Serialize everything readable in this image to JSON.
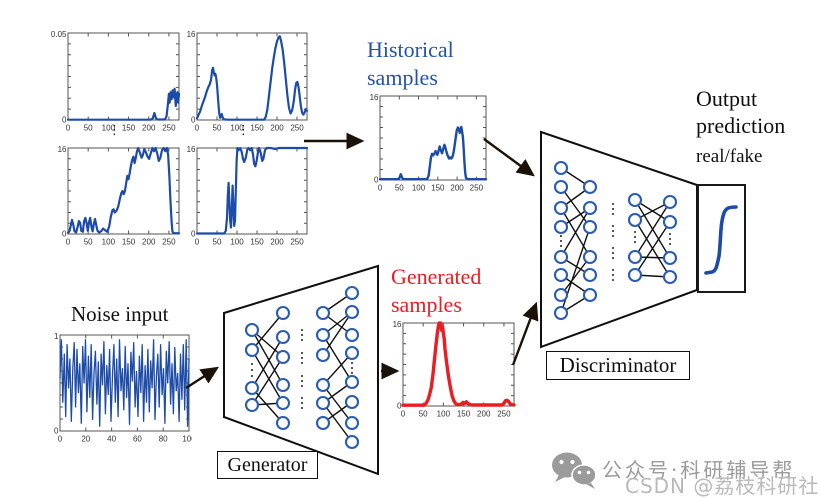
{
  "labels": {
    "historical_line1": "Historical",
    "historical_line2": "samples",
    "generated_line1": "Generated",
    "generated_line2": "samples",
    "noise_input": "Noise input",
    "generator": "Generator",
    "discriminator": "Discriminator",
    "output_line1": "Output",
    "output_line2": "prediction",
    "real_fake": "real/fake",
    "grid_ellipsis": "⋮"
  },
  "colors": {
    "series_blue": "#1d4ca8",
    "series_red": "#ec1c24",
    "node_stroke": "#2a5cb4",
    "axis": "#555555",
    "arrow": "#1a1208",
    "watermark_gray": "#9b9b9b",
    "watermark_light": "#b9b9b9"
  },
  "watermarks": {
    "wechat_text": "公众号·科研辅导帮",
    "csdn_text": "CSDN @荔枝科研社",
    "wechat_icon": "wechat-logo"
  },
  "plots": {
    "grid1": {
      "ymax_label": "0.05",
      "ymin_label": "0",
      "ymax": 0.05,
      "xmax": 275,
      "xtick_values": [
        0,
        50,
        100,
        150,
        200,
        250
      ],
      "xtick_labels": [
        "0",
        "50",
        "100",
        "150",
        "200",
        "250"
      ],
      "color": "#1d4ca8",
      "line_width": 2.2,
      "points": [
        [
          0,
          0.0002
        ],
        [
          205,
          0.0002
        ],
        [
          210,
          0.001
        ],
        [
          214,
          0.004
        ],
        [
          218,
          0.001
        ],
        [
          222,
          0.0003
        ],
        [
          240,
          0.0003
        ],
        [
          244,
          0.002
        ],
        [
          247,
          0.008
        ],
        [
          250,
          0.015
        ],
        [
          252,
          0.01
        ],
        [
          254,
          0.016
        ],
        [
          257,
          0.012
        ],
        [
          259,
          0.017
        ],
        [
          262,
          0.013
        ],
        [
          264,
          0.018
        ],
        [
          267,
          0.008
        ],
        [
          269,
          0.014
        ],
        [
          271,
          0.016
        ],
        [
          273,
          0.01
        ],
        [
          275,
          0.015
        ]
      ]
    },
    "grid2": {
      "ymax_label": "16",
      "ymin_label": "0",
      "ymax": 16,
      "xmax": 275,
      "xtick_values": [
        0,
        50,
        100,
        150,
        200,
        250
      ],
      "xtick_labels": [
        "0",
        "50",
        "100",
        "150",
        "200",
        "250"
      ],
      "color": "#1d4ca8",
      "line_width": 2.2,
      "points": [
        [
          0,
          0.3
        ],
        [
          4,
          1
        ],
        [
          8,
          1.6
        ],
        [
          12,
          2.6
        ],
        [
          16,
          3.4
        ],
        [
          20,
          4.2
        ],
        [
          24,
          5.2
        ],
        [
          28,
          6
        ],
        [
          32,
          6.6
        ],
        [
          35,
          7.4
        ],
        [
          38,
          9.2
        ],
        [
          40,
          9.6
        ],
        [
          42,
          8.8
        ],
        [
          44,
          8.2
        ],
        [
          46,
          8.5
        ],
        [
          48,
          7.8
        ],
        [
          50,
          6.5
        ],
        [
          52,
          4.5
        ],
        [
          54,
          2.5
        ],
        [
          56,
          1
        ],
        [
          58,
          0.4
        ],
        [
          60,
          0.9
        ],
        [
          62,
          1.1
        ],
        [
          64,
          0.5
        ],
        [
          66,
          0.2
        ],
        [
          70,
          0.1
        ],
        [
          80,
          0.05
        ],
        [
          168,
          0.05
        ],
        [
          172,
          0.6
        ],
        [
          176,
          2
        ],
        [
          180,
          4.5
        ],
        [
          184,
          7
        ],
        [
          188,
          9.5
        ],
        [
          192,
          11.5
        ],
        [
          196,
          13.2
        ],
        [
          200,
          14.5
        ],
        [
          204,
          15.2
        ],
        [
          207,
          15.4
        ],
        [
          210,
          14.6
        ],
        [
          214,
          13
        ],
        [
          218,
          10.5
        ],
        [
          222,
          7.5
        ],
        [
          226,
          4.5
        ],
        [
          230,
          2.2
        ],
        [
          234,
          1.2
        ],
        [
          238,
          1.8
        ],
        [
          242,
          3.5
        ],
        [
          245,
          5.5
        ],
        [
          248,
          6.8
        ],
        [
          251,
          7
        ],
        [
          254,
          6
        ],
        [
          257,
          4.2
        ],
        [
          260,
          2.4
        ],
        [
          263,
          1.3
        ],
        [
          266,
          1
        ],
        [
          269,
          1.4
        ],
        [
          272,
          2
        ],
        [
          275,
          1.7
        ]
      ]
    },
    "grid3": {
      "ymax_label": "16",
      "ymin_label": "0",
      "ymax": 16,
      "xmax": 275,
      "xtick_values": [
        0,
        50,
        100,
        150,
        200,
        250
      ],
      "xtick_labels": [
        "0",
        "50",
        "100",
        "150",
        "200",
        "250"
      ],
      "color": "#1d4ca8",
      "line_width": 2.2,
      "points": [
        [
          0,
          0.2
        ],
        [
          4,
          0.6
        ],
        [
          7,
          1.6
        ],
        [
          10,
          2.6
        ],
        [
          13,
          1.8
        ],
        [
          16,
          0.5
        ],
        [
          20,
          0.3
        ],
        [
          24,
          1.4
        ],
        [
          27,
          2.4
        ],
        [
          30,
          2.1
        ],
        [
          33,
          0.6
        ],
        [
          37,
          0.4
        ],
        [
          40,
          2.4
        ],
        [
          43,
          3
        ],
        [
          46,
          2
        ],
        [
          49,
          0.6
        ],
        [
          52,
          2.2
        ],
        [
          55,
          3
        ],
        [
          58,
          1.4
        ],
        [
          61,
          0.5
        ],
        [
          64,
          1.8
        ],
        [
          67,
          2.8
        ],
        [
          70,
          1.6
        ],
        [
          73,
          0.6
        ],
        [
          77,
          0.3
        ],
        [
          82,
          0.5
        ],
        [
          87,
          1
        ],
        [
          92,
          0.7
        ],
        [
          97,
          0.4
        ],
        [
          102,
          1.4
        ],
        [
          106,
          3.2
        ],
        [
          110,
          4.4
        ],
        [
          113,
          4.6
        ],
        [
          116,
          4
        ],
        [
          120,
          4.3
        ],
        [
          124,
          5
        ],
        [
          128,
          6.4
        ],
        [
          132,
          7.6
        ],
        [
          135,
          8
        ],
        [
          138,
          7.4
        ],
        [
          141,
          8
        ],
        [
          144,
          9.4
        ],
        [
          147,
          10.8
        ],
        [
          150,
          10.2
        ],
        [
          153,
          11.4
        ],
        [
          156,
          12.8
        ],
        [
          159,
          13.8
        ],
        [
          162,
          14.4
        ],
        [
          165,
          13.2
        ],
        [
          168,
          14.2
        ],
        [
          171,
          15.4
        ],
        [
          174,
          16
        ],
        [
          178,
          15.2
        ],
        [
          182,
          14.2
        ],
        [
          185,
          14.6
        ],
        [
          189,
          15.8
        ],
        [
          193,
          15.2
        ],
        [
          197,
          14.4
        ],
        [
          201,
          14
        ],
        [
          205,
          15
        ],
        [
          209,
          16
        ],
        [
          213,
          15.4
        ],
        [
          217,
          16
        ],
        [
          221,
          15
        ],
        [
          225,
          13.6
        ],
        [
          229,
          14.2
        ],
        [
          233,
          15.6
        ],
        [
          237,
          16
        ],
        [
          241,
          15.4
        ],
        [
          245,
          16
        ],
        [
          248,
          14.8
        ],
        [
          251,
          11
        ],
        [
          254,
          6
        ],
        [
          257,
          2
        ],
        [
          259,
          0.4
        ],
        [
          262,
          0.15
        ],
        [
          275,
          0.15
        ]
      ]
    },
    "grid4": {
      "ymax_label": "16",
      "ymin_label": "0",
      "ymax": 16,
      "xmax": 275,
      "xtick_values": [
        0,
        50,
        100,
        150,
        200,
        250
      ],
      "xtick_labels": [
        "0",
        "50",
        "100",
        "150",
        "200",
        "250"
      ],
      "color": "#1d4ca8",
      "line_width": 2.2,
      "points": [
        [
          0,
          0.1
        ],
        [
          68,
          0.1
        ],
        [
          72,
          0.6
        ],
        [
          75,
          3
        ],
        [
          77,
          7
        ],
        [
          79,
          9.5
        ],
        [
          81,
          6
        ],
        [
          83,
          2.5
        ],
        [
          85,
          1.2
        ],
        [
          87,
          4.5
        ],
        [
          89,
          9
        ],
        [
          91,
          5
        ],
        [
          93,
          1.5
        ],
        [
          95,
          2.5
        ],
        [
          97,
          8
        ],
        [
          99,
          13.5
        ],
        [
          101,
          16
        ],
        [
          104,
          15.6
        ],
        [
          108,
          16
        ],
        [
          112,
          15.2
        ],
        [
          115,
          14
        ],
        [
          118,
          13.4
        ],
        [
          122,
          14.2
        ],
        [
          126,
          15.8
        ],
        [
          129,
          16
        ],
        [
          133,
          15.6
        ],
        [
          137,
          16
        ],
        [
          140,
          14.8
        ],
        [
          143,
          13
        ],
        [
          146,
          12.6
        ],
        [
          149,
          13.6
        ],
        [
          152,
          15
        ],
        [
          155,
          16
        ],
        [
          159,
          15.2
        ],
        [
          163,
          13.6
        ],
        [
          166,
          14
        ],
        [
          170,
          15.6
        ],
        [
          174,
          16
        ],
        [
          185,
          16
        ],
        [
          195,
          15.8
        ],
        [
          205,
          16
        ],
        [
          275,
          16
        ]
      ]
    },
    "historical": {
      "ymax_label": "16",
      "ymin_label": "0",
      "ymax": 16,
      "xmax": 275,
      "xtick_values": [
        0,
        50,
        100,
        150,
        200,
        250
      ],
      "xtick_labels": [
        "0",
        "50",
        "100",
        "150",
        "200",
        "250"
      ],
      "color": "#1d4ca8",
      "line_width": 2.4,
      "points": [
        [
          0,
          0.15
        ],
        [
          48,
          0.15
        ],
        [
          51,
          0.5
        ],
        [
          54,
          1.1
        ],
        [
          57,
          0.5
        ],
        [
          60,
          0.15
        ],
        [
          122,
          0.15
        ],
        [
          126,
          0.8
        ],
        [
          129,
          2.4
        ],
        [
          132,
          4.2
        ],
        [
          135,
          5
        ],
        [
          138,
          4.7
        ],
        [
          141,
          5
        ],
        [
          144,
          5.5
        ],
        [
          146,
          5.1
        ],
        [
          149,
          4.8
        ],
        [
          152,
          5.6
        ],
        [
          155,
          6.4
        ],
        [
          158,
          5.6
        ],
        [
          161,
          5.1
        ],
        [
          164,
          5.9
        ],
        [
          167,
          6.7
        ],
        [
          170,
          6.1
        ],
        [
          173,
          5.2
        ],
        [
          176,
          4.6
        ],
        [
          179,
          4.1
        ],
        [
          182,
          4.3
        ],
        [
          185,
          4.1
        ],
        [
          188,
          4.4
        ],
        [
          191,
          5.3
        ],
        [
          194,
          6.8
        ],
        [
          197,
          8.3
        ],
        [
          199,
          9.4
        ],
        [
          202,
          10
        ],
        [
          205,
          9.5
        ],
        [
          207,
          9
        ],
        [
          209,
          9.8
        ],
        [
          211,
          10.1
        ],
        [
          213,
          9.2
        ],
        [
          215,
          8.2
        ],
        [
          217,
          6.2
        ],
        [
          219,
          3.5
        ],
        [
          221,
          1.4
        ],
        [
          223,
          0.4
        ],
        [
          228,
          0.15
        ],
        [
          275,
          0.15
        ]
      ]
    },
    "generated": {
      "ymax_label": "16",
      "ymin_label": "0",
      "ymax": 16,
      "xmax": 275,
      "xtick_values": [
        0,
        50,
        100,
        150,
        200,
        250
      ],
      "xtick_labels": [
        "0",
        "50",
        "100",
        "150",
        "200",
        "250"
      ],
      "color": "#ec1c24",
      "line_width": 3.4,
      "points": [
        [
          0,
          0.15
        ],
        [
          52,
          0.15
        ],
        [
          57,
          0.5
        ],
        [
          62,
          1.2
        ],
        [
          66,
          2.2
        ],
        [
          70,
          3.6
        ],
        [
          74,
          6
        ],
        [
          78,
          9
        ],
        [
          82,
          12
        ],
        [
          85,
          14
        ],
        [
          88,
          15.5
        ],
        [
          90,
          16
        ],
        [
          92,
          15.4
        ],
        [
          94,
          16
        ],
        [
          96,
          14.6
        ],
        [
          98,
          15.2
        ],
        [
          100,
          14
        ],
        [
          102,
          13
        ],
        [
          104,
          11
        ],
        [
          107,
          9
        ],
        [
          110,
          7.2
        ],
        [
          113,
          5.6
        ],
        [
          116,
          4.2
        ],
        [
          119,
          3
        ],
        [
          122,
          1.9
        ],
        [
          126,
          1
        ],
        [
          130,
          0.5
        ],
        [
          134,
          0.3
        ],
        [
          140,
          0.25
        ],
        [
          145,
          0.4
        ],
        [
          149,
          0.7
        ],
        [
          153,
          0.5
        ],
        [
          157,
          0.8
        ],
        [
          161,
          0.5
        ],
        [
          165,
          0.3
        ],
        [
          170,
          0.2
        ],
        [
          178,
          0.2
        ],
        [
          245,
          0.2
        ],
        [
          250,
          0.5
        ],
        [
          254,
          1
        ],
        [
          258,
          1.1
        ],
        [
          262,
          0.8
        ],
        [
          266,
          0.35
        ],
        [
          275,
          0.2
        ]
      ]
    },
    "noise": {
      "ymax_label": "1",
      "ymin_label": "0",
      "ymax": 1,
      "xmax": 100,
      "xtick_values": [
        0,
        20,
        40,
        60,
        80,
        100
      ],
      "xtick_labels": [
        "0",
        "20",
        "40",
        "60",
        "80",
        "100"
      ],
      "color": "#1d4ca8",
      "line_width": 1.3,
      "values": [
        0.55,
        0.95,
        0.3,
        0.8,
        0.15,
        0.9,
        0.45,
        0.75,
        0.1,
        0.65,
        0.92,
        0.25,
        0.85,
        0.4,
        0.7,
        0.08,
        0.88,
        0.5,
        0.95,
        0.2,
        0.78,
        0.35,
        0.9,
        0.12,
        0.6,
        0.83,
        0.28,
        0.72,
        0.05,
        0.8,
        0.48,
        0.93,
        0.18,
        0.68,
        0.38,
        0.85,
        0.1,
        0.58,
        0.9,
        0.3,
        0.75,
        0.15,
        0.95,
        0.42,
        0.65,
        0.22,
        0.88,
        0.35,
        0.7,
        0.07,
        0.82,
        0.52,
        0.92,
        0.25,
        0.62,
        0.15,
        0.78,
        0.4,
        0.9,
        0.1,
        0.68,
        0.3,
        0.85,
        0.2,
        0.73,
        0.45,
        0.95,
        0.12,
        0.57,
        0.8,
        0.25,
        0.9,
        0.38,
        0.65,
        0.08,
        0.83,
        0.5,
        0.93,
        0.28,
        0.7,
        0.18,
        0.87,
        0.42,
        0.6,
        0.1,
        0.8,
        0.33,
        0.9,
        0.22,
        0.95,
        0.05,
        0.75
      ]
    }
  }
}
